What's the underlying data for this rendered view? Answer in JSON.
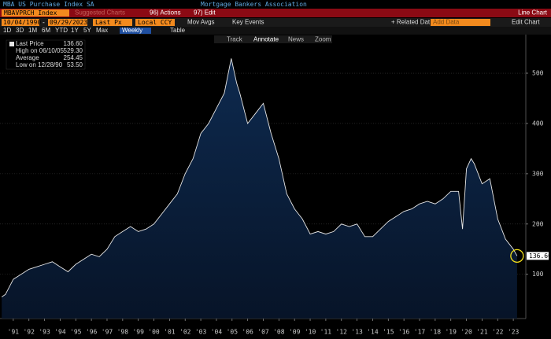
{
  "header": {
    "title": "MBA US Purchase Index SA",
    "source": "Mortgage Bankers Association",
    "ticker": "MBAVPRCH Index",
    "suggested": "Suggested Charts",
    "actions": "96) Actions",
    "edit": "97) Edit",
    "chart_kind": "Line Chart"
  },
  "controls": {
    "start_date": "10/04/1990",
    "separator": "-",
    "end_date": "09/29/2023",
    "price_field": "Last Px",
    "currency": "Local CCY",
    "mov_avgs": "Mov Avgs",
    "key_events": "Key Events",
    "related": "+ Related Dat",
    "add_data": "Add Data",
    "edit_chart": "Edit Chart",
    "periods": [
      "1D",
      "3D",
      "1M",
      "6M",
      "YTD",
      "1Y",
      "5Y",
      "Max"
    ],
    "frequency": "Weekly",
    "table": "Table",
    "tools": [
      "Track",
      "Annotate",
      "News",
      "Zoom"
    ]
  },
  "chart_data": {
    "type": "line",
    "stats": {
      "labels": [
        "Last Price",
        "High on 06/10/05",
        "Average",
        "Low on 12/28/90"
      ],
      "values": [
        136.6,
        529.3,
        254.45,
        53.5
      ],
      "value_labels": [
        "136.60",
        "529.30",
        "254.45",
        "53.50"
      ]
    },
    "x": [
      1990.76,
      1991.0,
      1991.5,
      1992.0,
      1992.5,
      1993.0,
      1993.5,
      1994.0,
      1994.5,
      1995.0,
      1995.5,
      1996.0,
      1996.5,
      1997.0,
      1997.5,
      1998.0,
      1998.5,
      1999.0,
      1999.5,
      2000.0,
      2000.5,
      2001.0,
      2001.5,
      2002.0,
      2002.5,
      2003.0,
      2003.5,
      2004.0,
      2004.5,
      2005.0,
      2005.45,
      2005.8,
      2006.0,
      2006.5,
      2007.0,
      2007.5,
      2008.0,
      2008.5,
      2009.0,
      2009.5,
      2010.0,
      2010.5,
      2011.0,
      2011.5,
      2012.0,
      2012.5,
      2013.0,
      2013.5,
      2014.0,
      2014.5,
      2015.0,
      2015.5,
      2016.0,
      2016.5,
      2017.0,
      2017.5,
      2018.0,
      2018.5,
      2019.0,
      2019.5,
      2020.0,
      2020.25,
      2020.5,
      2020.8,
      2021.0,
      2021.5,
      2022.0,
      2022.5,
      2023.0,
      2023.5,
      2023.74
    ],
    "series": [
      {
        "name": "Last Price",
        "color": "#e6e6e6",
        "values": [
          55,
          60,
          90,
          100,
          110,
          115,
          120,
          125,
          115,
          105,
          120,
          130,
          140,
          135,
          150,
          175,
          185,
          195,
          185,
          190,
          200,
          220,
          240,
          260,
          300,
          330,
          380,
          400,
          430,
          460,
          529.3,
          480,
          460,
          400,
          420,
          440,
          380,
          330,
          260,
          230,
          210,
          180,
          185,
          180,
          185,
          200,
          195,
          200,
          175,
          175,
          190,
          205,
          215,
          225,
          230,
          240,
          245,
          240,
          250,
          265,
          265,
          190,
          310,
          330,
          320,
          280,
          290,
          210,
          170,
          150,
          136.6
        ]
      }
    ],
    "xlim": [
      1990.65,
      2024.3
    ],
    "ylim": [
      12,
      572
    ],
    "xticks": [
      {
        "value": 1991.5,
        "label": "'91"
      },
      {
        "value": 1992.5,
        "label": "'92"
      },
      {
        "value": 1993.5,
        "label": "'93"
      },
      {
        "value": 1994.5,
        "label": "'94"
      },
      {
        "value": 1995.5,
        "label": "'95"
      },
      {
        "value": 1996.5,
        "label": "'96"
      },
      {
        "value": 1997.5,
        "label": "'97"
      },
      {
        "value": 1998.5,
        "label": "'98"
      },
      {
        "value": 1999.5,
        "label": "'99"
      },
      {
        "value": 2000.5,
        "label": "'00"
      },
      {
        "value": 2001.5,
        "label": "'01"
      },
      {
        "value": 2002.5,
        "label": "'02"
      },
      {
        "value": 2003.5,
        "label": "'03"
      },
      {
        "value": 2004.5,
        "label": "'04"
      },
      {
        "value": 2005.5,
        "label": "'05"
      },
      {
        "value": 2006.5,
        "label": "'06"
      },
      {
        "value": 2007.5,
        "label": "'07"
      },
      {
        "value": 2008.5,
        "label": "'08"
      },
      {
        "value": 2009.5,
        "label": "'09"
      },
      {
        "value": 2010.5,
        "label": "'10"
      },
      {
        "value": 2011.5,
        "label": "'11"
      },
      {
        "value": 2012.5,
        "label": "'12"
      },
      {
        "value": 2013.5,
        "label": "'13"
      },
      {
        "value": 2014.5,
        "label": "'14"
      },
      {
        "value": 2015.5,
        "label": "'15"
      },
      {
        "value": 2016.5,
        "label": "'16"
      },
      {
        "value": 2017.5,
        "label": "'17"
      },
      {
        "value": 2018.5,
        "label": "'18"
      },
      {
        "value": 2019.5,
        "label": "'19"
      },
      {
        "value": 2020.5,
        "label": "'20"
      },
      {
        "value": 2021.5,
        "label": "'21"
      },
      {
        "value": 2022.5,
        "label": "'22"
      },
      {
        "value": 2023.5,
        "label": "'23"
      }
    ],
    "yticks": [
      100,
      200,
      300,
      400,
      500
    ],
    "grid": true,
    "area_color": "#0b2545"
  }
}
